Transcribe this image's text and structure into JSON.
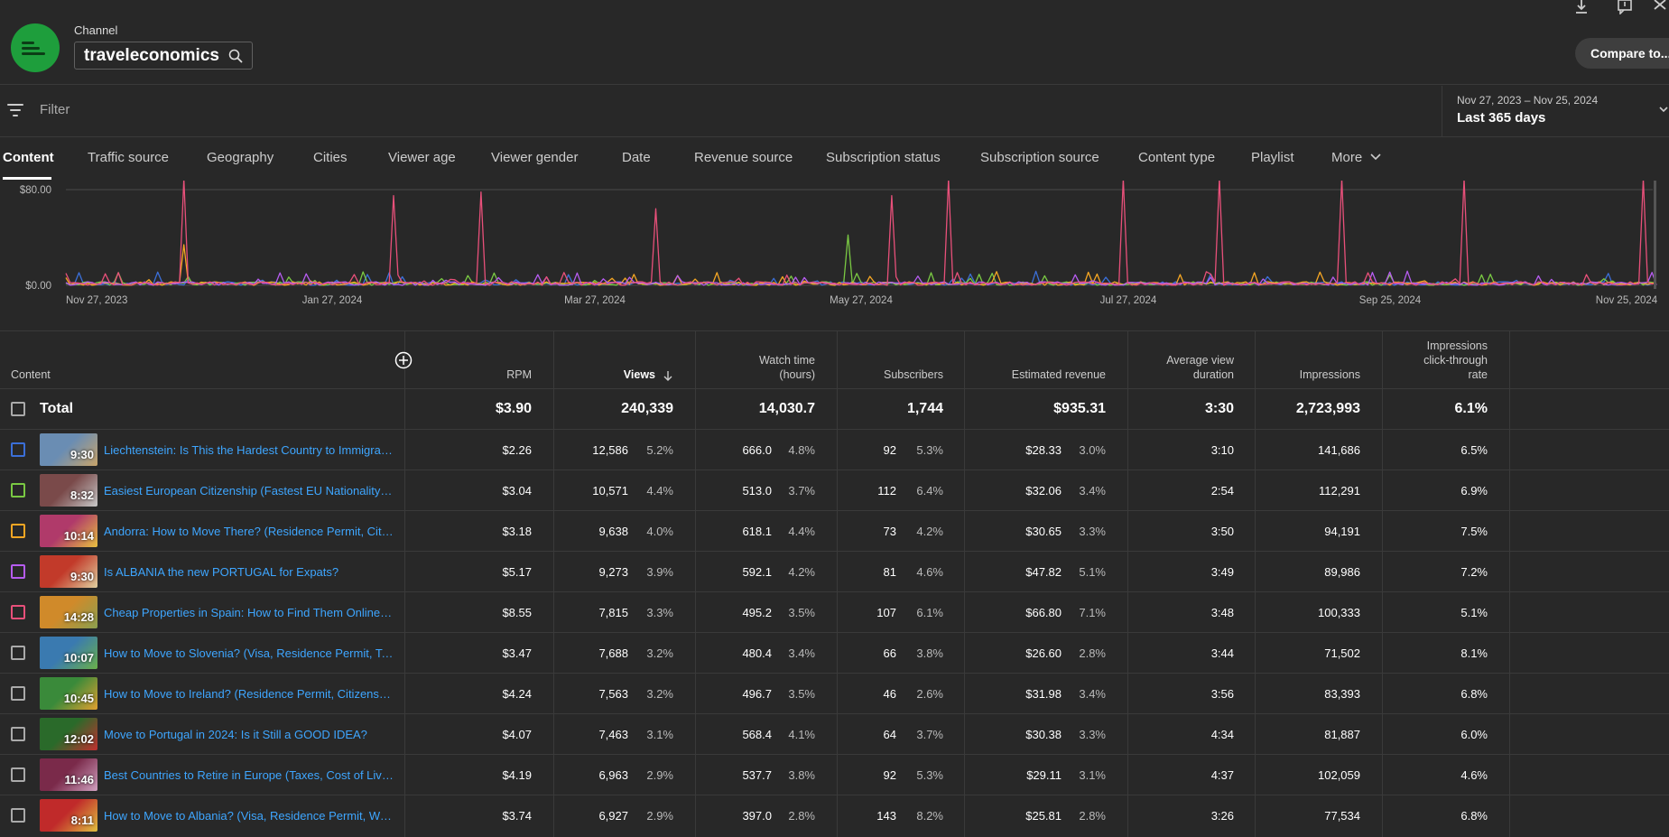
{
  "header": {
    "channel_label": "Channel",
    "channel_name": "traveleconomics",
    "compare_label": "Compare to..."
  },
  "filter": {
    "placeholder": "Filter"
  },
  "date_range": {
    "range": "Nov 27, 2023 – Nov 25, 2024",
    "label": "Last 365 days"
  },
  "tabs": [
    "Content",
    "Traffic source",
    "Geography",
    "Cities",
    "Viewer age",
    "Viewer gender",
    "Date",
    "Revenue source",
    "Subscription status",
    "Subscription source",
    "Content type",
    "Playlist",
    "More"
  ],
  "chart_data": {
    "type": "line",
    "ylabel": "",
    "y_ticks": [
      "$80.00",
      "$0.00"
    ],
    "ylim": [
      0,
      80
    ],
    "x_ticks": [
      "Nov 27, 2023",
      "Jan 27, 2024",
      "Mar 27, 2024",
      "May 27, 2024",
      "Jul 27, 2024",
      "Sep 25, 2024",
      "Nov 25, 2024"
    ],
    "series_colors": [
      "#3b6fd8",
      "#7ac943",
      "#f5a623",
      "#b65cf0",
      "#e8507a"
    ],
    "peaks_estimated": [
      {
        "series": 4,
        "date": "Dec 24, 2023",
        "value": 90
      },
      {
        "series": 4,
        "date": "Feb 10, 2024",
        "value": 75
      },
      {
        "series": 4,
        "date": "Mar 1, 2024",
        "value": 78
      },
      {
        "series": 4,
        "date": "Apr 10, 2024",
        "value": 64
      },
      {
        "series": 4,
        "date": "Jun 3, 2024",
        "value": 75
      },
      {
        "series": 4,
        "date": "Jun 16, 2024",
        "value": 90
      },
      {
        "series": 4,
        "date": "Jul 26, 2024",
        "value": 90
      },
      {
        "series": 4,
        "date": "Aug 17, 2024",
        "value": 90
      },
      {
        "series": 4,
        "date": "Sep 14, 2024",
        "value": 90
      },
      {
        "series": 4,
        "date": "Oct 12, 2024",
        "value": 90
      },
      {
        "series": 4,
        "date": "Nov 22, 2024",
        "value": 90
      },
      {
        "series": 1,
        "date": "May 24, 2024",
        "value": 42
      },
      {
        "series": 2,
        "date": "Dec 24, 2023",
        "value": 34
      }
    ]
  },
  "table": {
    "headers": {
      "content": "Content",
      "rpm": "RPM",
      "views": "Views",
      "watch_time": [
        "Watch time",
        "(hours)"
      ],
      "subscribers": "Subscribers",
      "revenue": "Estimated revenue",
      "avd": [
        "Average view",
        "duration"
      ],
      "impressions": "Impressions",
      "ctr": [
        "Impressions",
        "click-through",
        "rate"
      ]
    },
    "total": {
      "label": "Total",
      "rpm": "$3.90",
      "views": "240,339",
      "watch": "14,030.7",
      "subs": "1,744",
      "revenue": "$935.31",
      "avd": "3:30",
      "impressions": "2,723,993",
      "ctr": "6.1%"
    },
    "rows": [
      {
        "title": "Liechtenstein: Is This the Hardest Country to Immigrate to?",
        "duration": "9:30",
        "check_color": "#3b6fd8",
        "thumb_colors": [
          "#6a8db3",
          "#c9a46a"
        ],
        "rpm": "$2.26",
        "views": "12,586",
        "views_pct": "5.2%",
        "watch": "666.0",
        "watch_pct": "4.8%",
        "subs": "92",
        "subs_pct": "5.3%",
        "revenue": "$28.33",
        "rev_pct": "3.0%",
        "avd": "3:10",
        "impressions": "141,686",
        "ctr": "6.5%"
      },
      {
        "title": "Easiest European Citizenship (Fastest EU Nationality and Passport)",
        "duration": "8:32",
        "check_color": "#7ac943",
        "thumb_colors": [
          "#7a4a4a",
          "#c8c8c8"
        ],
        "rpm": "$3.04",
        "views": "10,571",
        "views_pct": "4.4%",
        "watch": "513.0",
        "watch_pct": "3.7%",
        "subs": "112",
        "subs_pct": "6.4%",
        "revenue": "$32.06",
        "rev_pct": "3.4%",
        "avd": "2:54",
        "impressions": "112,291",
        "ctr": "6.9%"
      },
      {
        "title": "Andorra: How to Move There? (Residence Permit, Citizenship)",
        "duration": "10:14",
        "check_color": "#f5a623",
        "thumb_colors": [
          "#b03a6a",
          "#e8c040"
        ],
        "rpm": "$3.18",
        "views": "9,638",
        "views_pct": "4.0%",
        "watch": "618.1",
        "watch_pct": "4.4%",
        "subs": "73",
        "subs_pct": "4.2%",
        "revenue": "$30.65",
        "rev_pct": "3.3%",
        "avd": "3:50",
        "impressions": "94,191",
        "ctr": "7.5%"
      },
      {
        "title": "Is ALBANIA the new PORTUGAL for Expats?",
        "duration": "9:30",
        "check_color": "#b65cf0",
        "thumb_colors": [
          "#c23a2a",
          "#e0d0a0"
        ],
        "rpm": "$5.17",
        "views": "9,273",
        "views_pct": "3.9%",
        "watch": "592.1",
        "watch_pct": "4.2%",
        "subs": "81",
        "subs_pct": "4.6%",
        "revenue": "$47.82",
        "rev_pct": "5.1%",
        "avd": "3:49",
        "impressions": "89,986",
        "ctr": "7.2%"
      },
      {
        "title": "Cheap Properties in Spain: How to Find Them Online? (Guide)",
        "duration": "14:28",
        "check_color": "#e8507a",
        "thumb_colors": [
          "#d08a2a",
          "#8aa050"
        ],
        "rpm": "$8.55",
        "views": "7,815",
        "views_pct": "3.3%",
        "watch": "495.2",
        "watch_pct": "3.5%",
        "subs": "107",
        "subs_pct": "6.1%",
        "revenue": "$66.80",
        "rev_pct": "7.1%",
        "avd": "3:48",
        "impressions": "100,333",
        "ctr": "5.1%"
      },
      {
        "title": "How to Move to Slovenia? (Visa, Residence Permit, Taxes)",
        "duration": "10:07",
        "check_color": "#aaaaaa",
        "thumb_colors": [
          "#3a7ab0",
          "#6ab04a"
        ],
        "rpm": "$3.47",
        "views": "7,688",
        "views_pct": "3.2%",
        "watch": "480.4",
        "watch_pct": "3.4%",
        "subs": "66",
        "subs_pct": "3.8%",
        "revenue": "$26.60",
        "rev_pct": "2.8%",
        "avd": "3:44",
        "impressions": "71,502",
        "ctr": "8.1%"
      },
      {
        "title": "How to Move to Ireland? (Residence Permit, Citizenship)",
        "duration": "10:45",
        "check_color": "#aaaaaa",
        "thumb_colors": [
          "#3a8a3a",
          "#e0a030"
        ],
        "rpm": "$4.24",
        "views": "7,563",
        "views_pct": "3.2%",
        "watch": "496.7",
        "watch_pct": "3.5%",
        "subs": "46",
        "subs_pct": "2.6%",
        "revenue": "$31.98",
        "rev_pct": "3.4%",
        "avd": "3:56",
        "impressions": "83,393",
        "ctr": "6.8%"
      },
      {
        "title": "Move to Portugal in 2024: Is it Still a GOOD IDEA?",
        "duration": "12:02",
        "check_color": "#aaaaaa",
        "thumb_colors": [
          "#2a6a2a",
          "#c03030"
        ],
        "rpm": "$4.07",
        "views": "7,463",
        "views_pct": "3.1%",
        "watch": "568.4",
        "watch_pct": "4.1%",
        "subs": "64",
        "subs_pct": "3.7%",
        "revenue": "$30.38",
        "rev_pct": "3.3%",
        "avd": "4:34",
        "impressions": "81,887",
        "ctr": "6.0%"
      },
      {
        "title": "Best Countries to Retire in Europe (Taxes, Cost of Living)",
        "duration": "11:46",
        "check_color": "#aaaaaa",
        "thumb_colors": [
          "#7a2a4a",
          "#d0a0c0"
        ],
        "rpm": "$4.19",
        "views": "6,963",
        "views_pct": "2.9%",
        "watch": "537.7",
        "watch_pct": "3.8%",
        "subs": "92",
        "subs_pct": "5.3%",
        "revenue": "$29.11",
        "rev_pct": "3.1%",
        "avd": "4:37",
        "impressions": "102,059",
        "ctr": "4.6%"
      },
      {
        "title": "How to Move to Albania? (Visa, Residence Permit, Work Permit)",
        "duration": "8:11",
        "check_color": "#aaaaaa",
        "thumb_colors": [
          "#c02a2a",
          "#e0c040"
        ],
        "rpm": "$3.74",
        "views": "6,927",
        "views_pct": "2.9%",
        "watch": "397.0",
        "watch_pct": "2.8%",
        "subs": "143",
        "subs_pct": "8.2%",
        "revenue": "$25.81",
        "rev_pct": "2.8%",
        "avd": "3:26",
        "impressions": "77,534",
        "ctr": "6.8%"
      }
    ]
  }
}
